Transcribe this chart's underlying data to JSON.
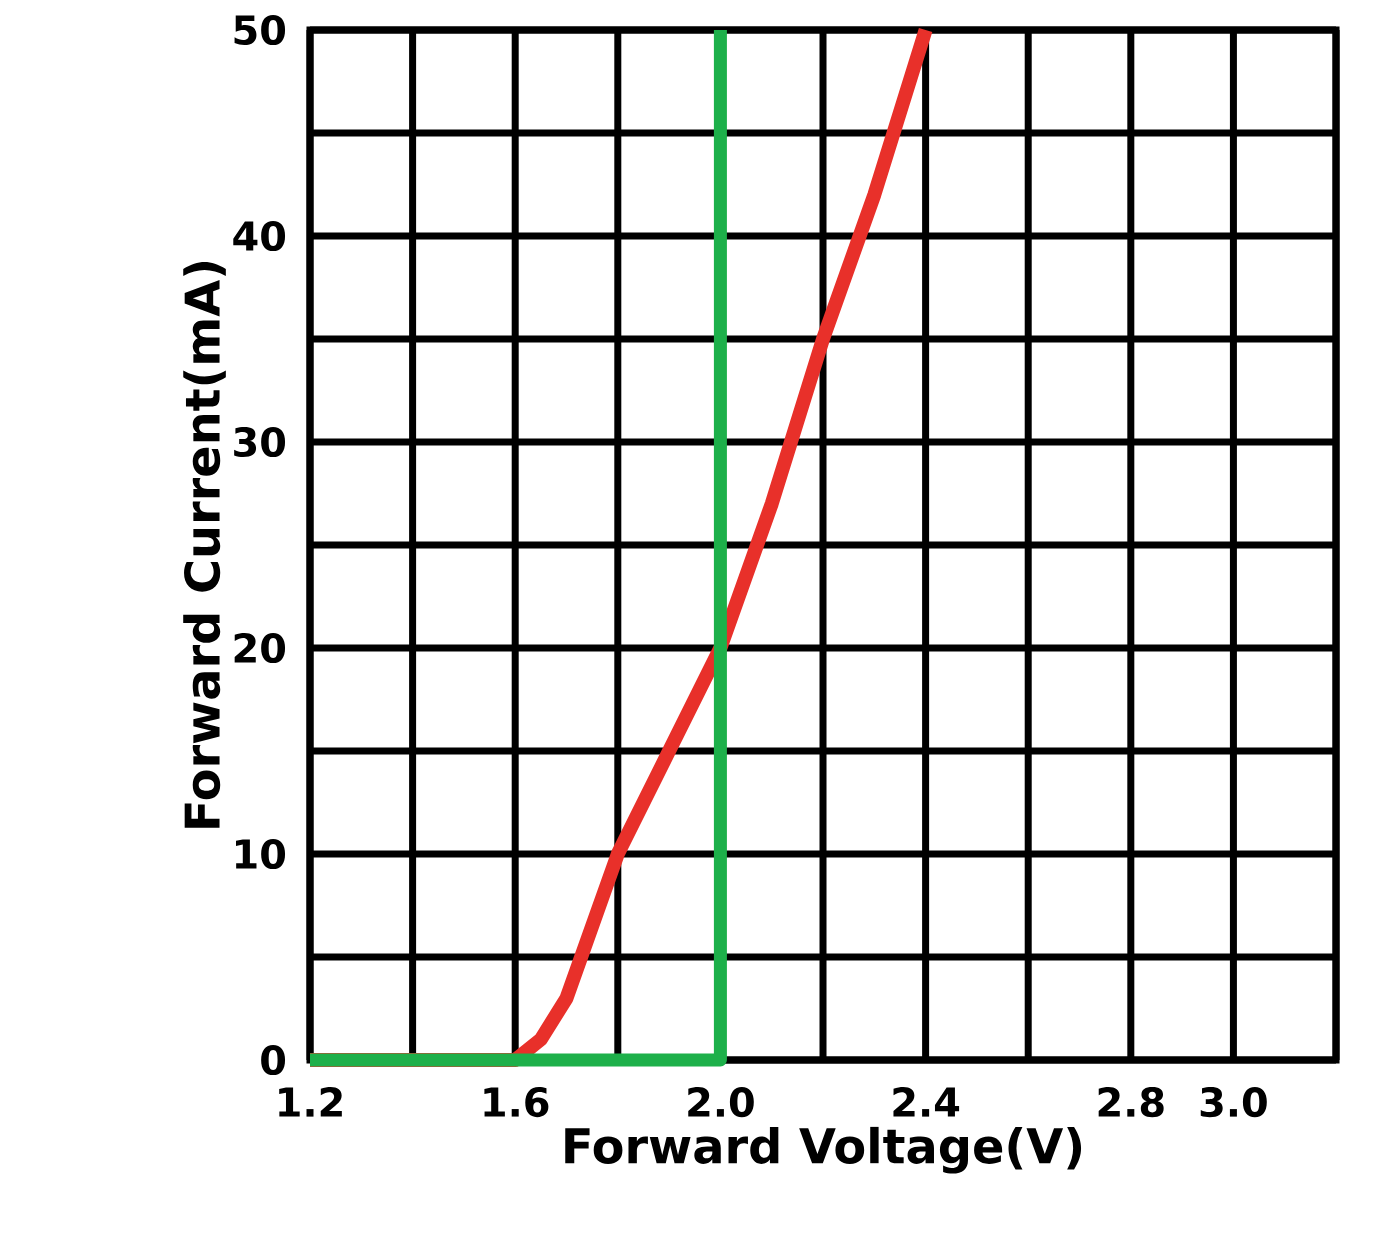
{
  "chart_data": {
    "type": "line",
    "xlabel": "Forward  Voltage(V)",
    "ylabel": "Forward  Current(mA)",
    "xlim": [
      1.2,
      3.2
    ],
    "ylim": [
      0,
      50
    ],
    "xticks": [
      1.2,
      {
        "value": 1.4,
        "label": null
      },
      1.6,
      {
        "value": 1.8,
        "label": null
      },
      {
        "value": 2.0,
        "label": "2.0"
      },
      {
        "value": 2.2,
        "label": null
      },
      2.4,
      {
        "value": 2.6,
        "label": null
      },
      2.8,
      {
        "value": 3.0,
        "label": "3.0"
      },
      {
        "value": 3.2,
        "label": null
      }
    ],
    "yticks": [
      0,
      {
        "value": 5,
        "label": null
      },
      10,
      {
        "value": 15,
        "label": null
      },
      20,
      {
        "value": 25,
        "label": null
      },
      30,
      {
        "value": 35,
        "label": null
      },
      40,
      {
        "value": 45,
        "label": null
      },
      50
    ],
    "grid": true,
    "line_style": "solid",
    "marker": "none",
    "series": [
      {
        "color": "#e8302a",
        "x": [
          1.2,
          1.6,
          1.65,
          1.7,
          1.8,
          1.9,
          2.0,
          2.1,
          2.2,
          2.3,
          2.4
        ],
        "values": [
          0,
          0,
          1,
          3,
          10,
          15,
          20,
          27,
          35,
          42,
          50
        ]
      },
      {
        "color": "#1db04a",
        "x": [
          1.2,
          2.0,
          2.0
        ],
        "values": [
          0,
          0,
          50
        ]
      }
    ]
  }
}
